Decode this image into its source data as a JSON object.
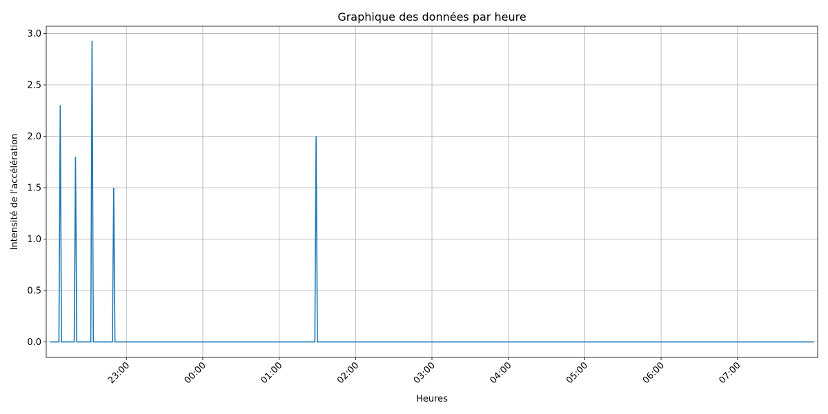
{
  "chart_data": {
    "type": "line",
    "title": "Graphique des données par heure",
    "xlabel": "Heures",
    "ylabel": "Intensité de l'accélération",
    "x_unit": "time of day (HH:MM)",
    "xlim": [
      "21:57",
      "08:03"
    ],
    "ylim": [
      -0.15,
      3.07
    ],
    "grid": true,
    "x_tick_rotation_deg": 45,
    "x_ticks": [
      {
        "t": "23:00",
        "label": "23:00"
      },
      {
        "t": "00:00",
        "label": "00:00"
      },
      {
        "t": "01:00",
        "label": "01:00"
      },
      {
        "t": "02:00",
        "label": "02:00"
      },
      {
        "t": "03:00",
        "label": "03:00"
      },
      {
        "t": "04:00",
        "label": "04:00"
      },
      {
        "t": "05:00",
        "label": "05:00"
      },
      {
        "t": "06:00",
        "label": "06:00"
      },
      {
        "t": "07:00",
        "label": "07:00"
      }
    ],
    "y_ticks": [
      {
        "v": 0.0,
        "label": "0.0"
      },
      {
        "v": 0.5,
        "label": "0.5"
      },
      {
        "v": 1.0,
        "label": "1.0"
      },
      {
        "v": 1.5,
        "label": "1.5"
      },
      {
        "v": 2.0,
        "label": "2.0"
      },
      {
        "v": 2.5,
        "label": "2.5"
      },
      {
        "v": 3.0,
        "label": "3.0"
      }
    ],
    "series": [
      {
        "color": "#1f77b4",
        "points": [
          {
            "t": "22:00",
            "y": 0.0
          },
          {
            "t": "22:07",
            "y": 0.0
          },
          {
            "t": "22:08",
            "y": 2.3
          },
          {
            "t": "22:09",
            "y": 0.0
          },
          {
            "t": "22:19",
            "y": 0.0
          },
          {
            "t": "22:20",
            "y": 1.8
          },
          {
            "t": "22:21",
            "y": 0.0
          },
          {
            "t": "22:32",
            "y": 0.0
          },
          {
            "t": "22:33",
            "y": 2.93
          },
          {
            "t": "22:34",
            "y": 0.0
          },
          {
            "t": "22:49",
            "y": 0.0
          },
          {
            "t": "22:50",
            "y": 1.5
          },
          {
            "t": "22:51",
            "y": 0.0
          },
          {
            "t": "01:28",
            "y": 0.0
          },
          {
            "t": "01:29",
            "y": 2.0
          },
          {
            "t": "01:30",
            "y": 0.0
          },
          {
            "t": "08:00",
            "y": 0.0
          }
        ]
      }
    ]
  }
}
